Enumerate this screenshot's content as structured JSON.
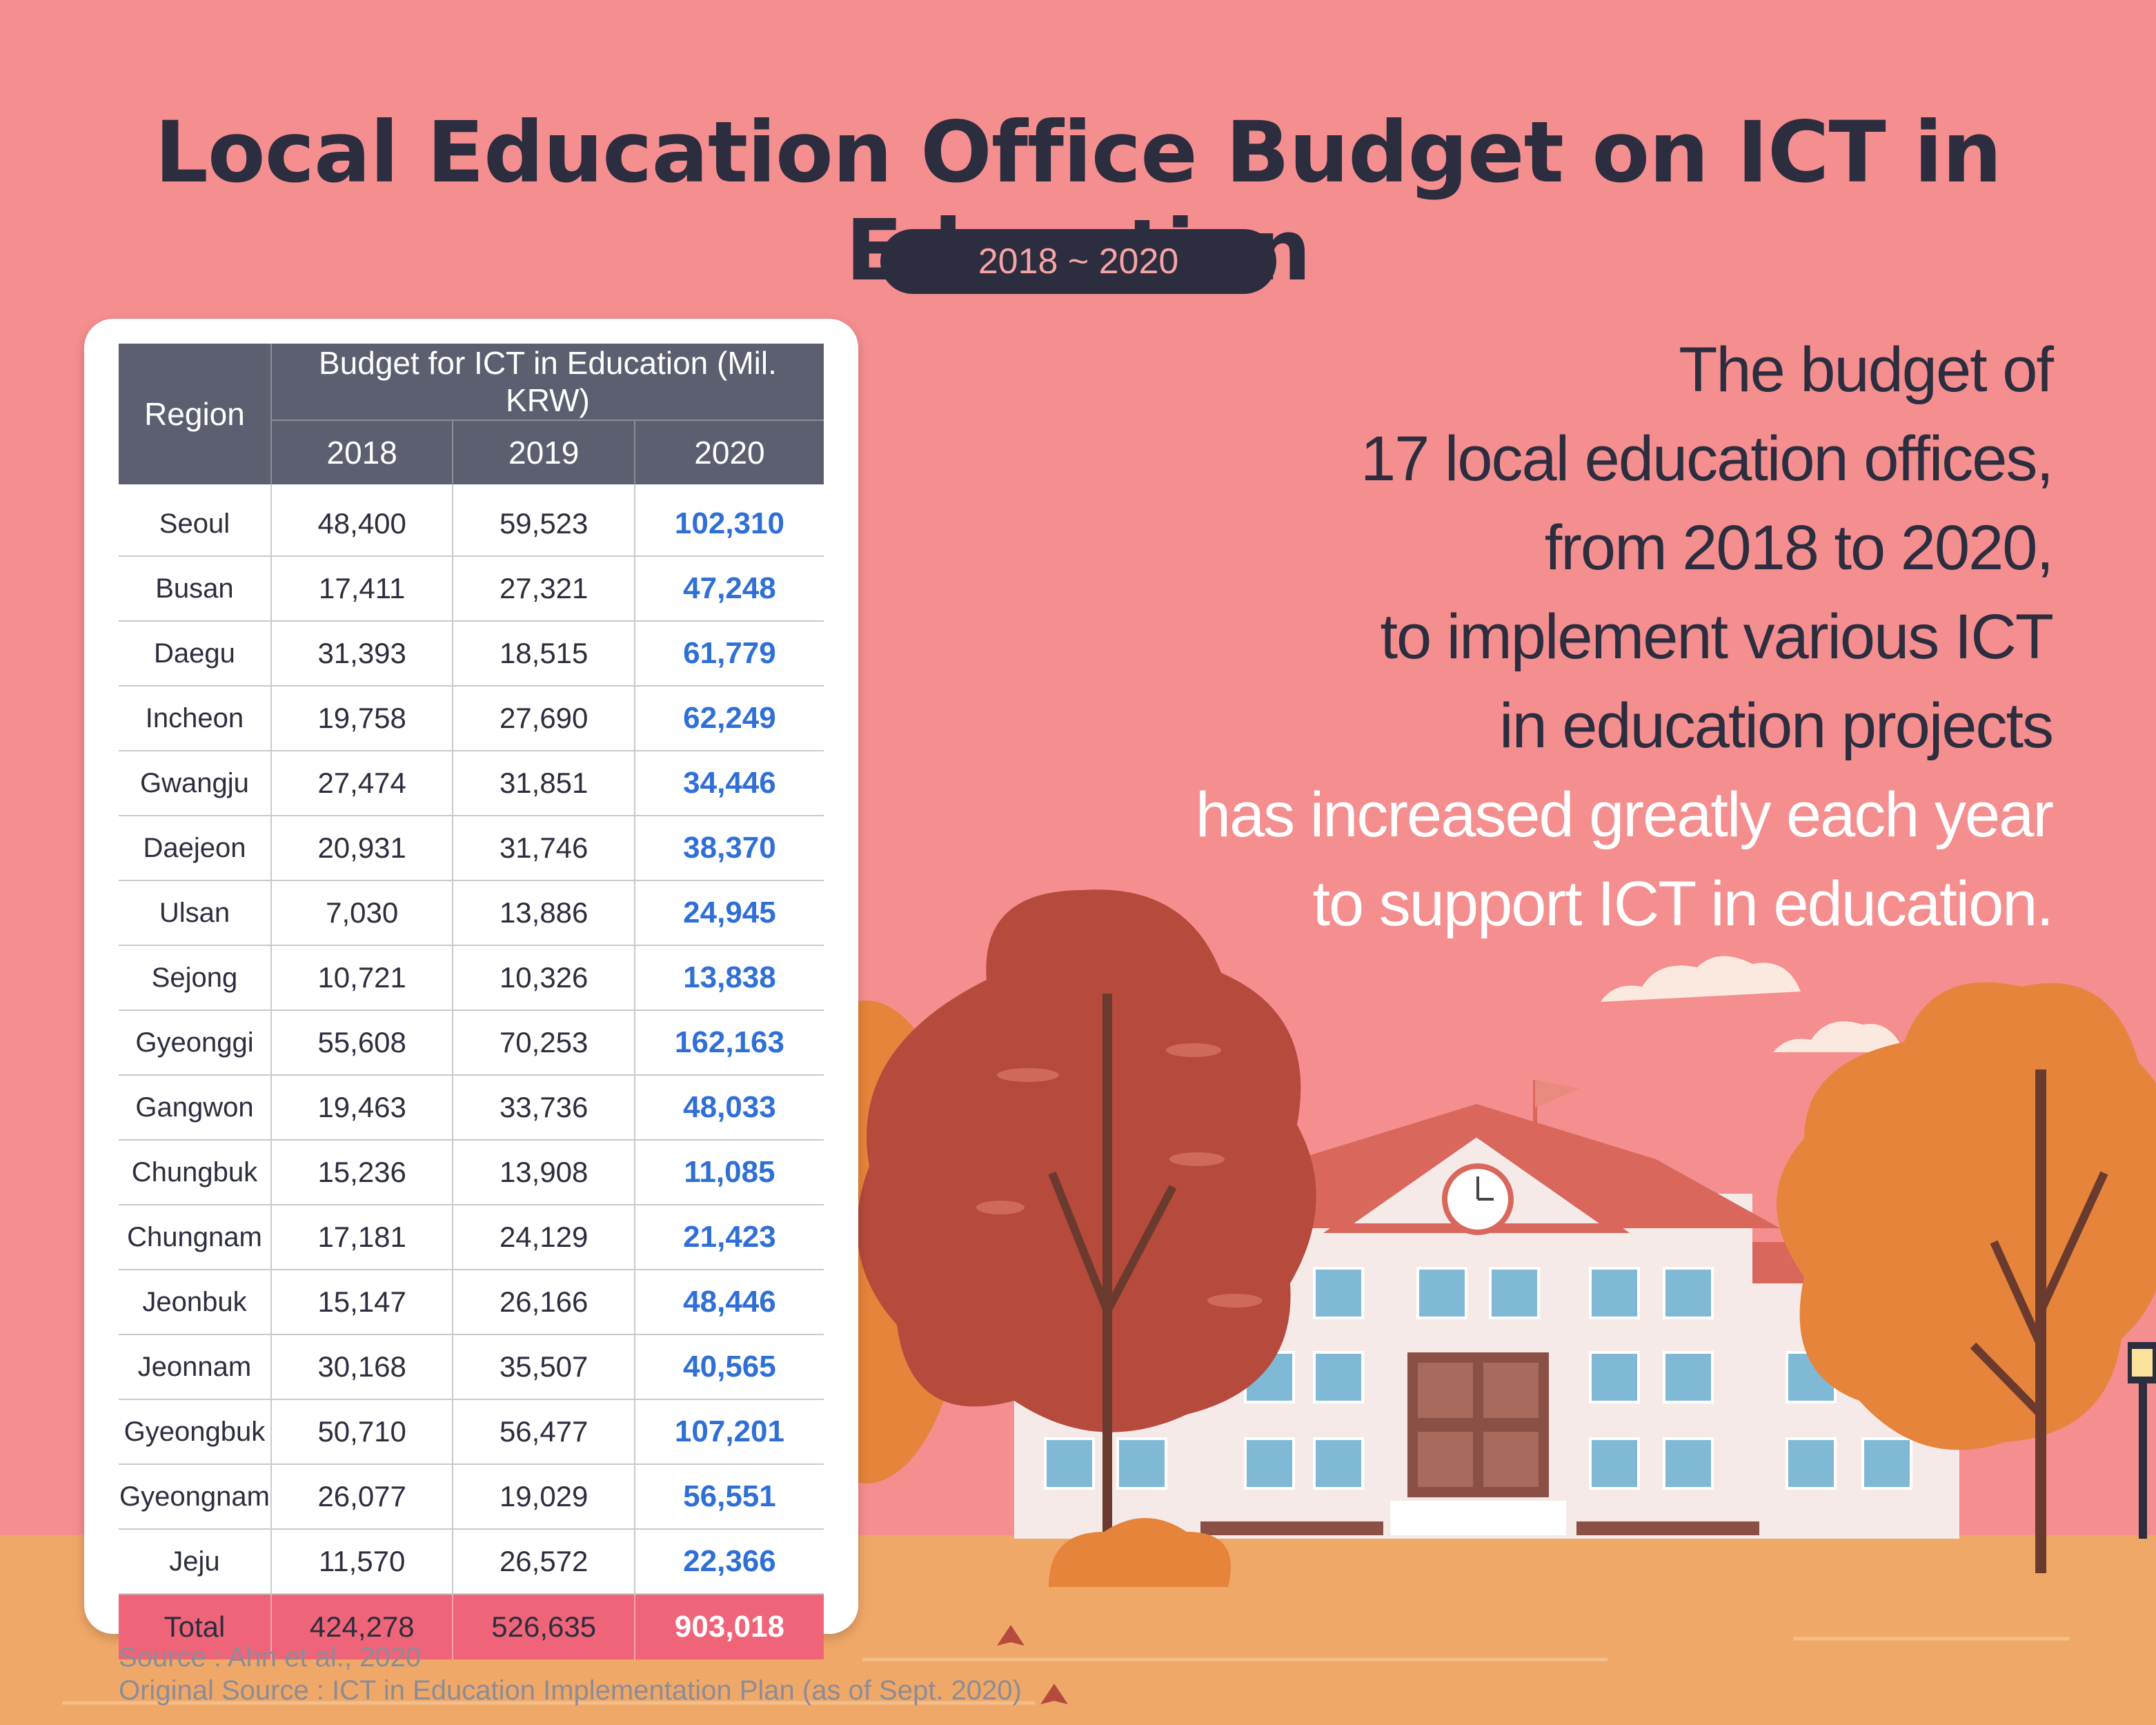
{
  "title": "Local Education Office Budget on ICT in Education",
  "period": "2018 ~ 2020",
  "table": {
    "region_header": "Region",
    "budget_header": "Budget for ICT in Education (Mil. KRW)",
    "year_headers": [
      "2018",
      "2019",
      "2020"
    ],
    "rows": [
      {
        "region": "Seoul",
        "y2018": "48,400",
        "y2019": "59,523",
        "y2020": "102,310"
      },
      {
        "region": "Busan",
        "y2018": "17,411",
        "y2019": "27,321",
        "y2020": "47,248"
      },
      {
        "region": "Daegu",
        "y2018": "31,393",
        "y2019": "18,515",
        "y2020": "61,779"
      },
      {
        "region": "Incheon",
        "y2018": "19,758",
        "y2019": "27,690",
        "y2020": "62,249"
      },
      {
        "region": "Gwangju",
        "y2018": "27,474",
        "y2019": "31,851",
        "y2020": "34,446"
      },
      {
        "region": "Daejeon",
        "y2018": "20,931",
        "y2019": "31,746",
        "y2020": "38,370"
      },
      {
        "region": "Ulsan",
        "y2018": "7,030",
        "y2019": "13,886",
        "y2020": "24,945"
      },
      {
        "region": "Sejong",
        "y2018": "10,721",
        "y2019": "10,326",
        "y2020": "13,838"
      },
      {
        "region": "Gyeonggi",
        "y2018": "55,608",
        "y2019": "70,253",
        "y2020": "162,163"
      },
      {
        "region": "Gangwon",
        "y2018": "19,463",
        "y2019": "33,736",
        "y2020": "48,033"
      },
      {
        "region": "Chungbuk",
        "y2018": "15,236",
        "y2019": "13,908",
        "y2020": "11,085"
      },
      {
        "region": "Chungnam",
        "y2018": "17,181",
        "y2019": "24,129",
        "y2020": "21,423"
      },
      {
        "region": "Jeonbuk",
        "y2018": "15,147",
        "y2019": "26,166",
        "y2020": "48,446"
      },
      {
        "region": "Jeonnam",
        "y2018": "30,168",
        "y2019": "35,507",
        "y2020": "40,565"
      },
      {
        "region": "Gyeongbuk",
        "y2018": "50,710",
        "y2019": "56,477",
        "y2020": "107,201"
      },
      {
        "region": "Gyeongnam",
        "y2018": "26,077",
        "y2019": "19,029",
        "y2020": "56,551"
      },
      {
        "region": "Jeju",
        "y2018": "11,570",
        "y2019": "26,572",
        "y2020": "22,366"
      }
    ],
    "total": {
      "label": "Total",
      "y2018": "424,278",
      "y2019": "526,635",
      "y2020": "903,018"
    }
  },
  "description": {
    "dark_lines": [
      "The budget of",
      "17 local education offices,",
      "from 2018 to 2020,",
      "to implement various ICT",
      "in education projects"
    ],
    "light_lines": [
      "has increased greatly each year",
      "to support ICT in education."
    ]
  },
  "source": {
    "line1": "Source : Ahn et al., 2020",
    "line2": "Original Source : ICT in Education Implementation Plan (as of Sept. 2020)"
  },
  "colors": {
    "background": "#f48e8f",
    "title": "#2c2d3e",
    "header_fill": "#5c5f70",
    "highlight_2020": "#2f6fd6",
    "total_row": "#ef6479"
  },
  "chart_data": {
    "type": "table",
    "title": "Local Education Office Budget on ICT in Education",
    "subtitle": "2018 ~ 2020",
    "unit": "Mil. KRW",
    "columns": [
      "Region",
      "2018",
      "2019",
      "2020"
    ],
    "categories": [
      "Seoul",
      "Busan",
      "Daegu",
      "Incheon",
      "Gwangju",
      "Daejeon",
      "Ulsan",
      "Sejong",
      "Gyeonggi",
      "Gangwon",
      "Chungbuk",
      "Chungnam",
      "Jeonbuk",
      "Jeonnam",
      "Gyeongbuk",
      "Gyeongnam",
      "Jeju"
    ],
    "series": [
      {
        "name": "2018",
        "values": [
          48400,
          17411,
          31393,
          19758,
          27474,
          20931,
          7030,
          10721,
          55608,
          19463,
          15236,
          17181,
          15147,
          30168,
          50710,
          26077,
          11570
        ],
        "total": 424278
      },
      {
        "name": "2019",
        "values": [
          59523,
          27321,
          18515,
          27690,
          31851,
          31746,
          13886,
          10326,
          70253,
          33736,
          13908,
          24129,
          26166,
          35507,
          56477,
          19029,
          26572
        ],
        "total": 526635
      },
      {
        "name": "2020",
        "values": [
          102310,
          47248,
          61779,
          62249,
          34446,
          38370,
          24945,
          13838,
          162163,
          48033,
          11085,
          21423,
          48446,
          40565,
          107201,
          56551,
          22366
        ],
        "total": 903018
      }
    ]
  }
}
